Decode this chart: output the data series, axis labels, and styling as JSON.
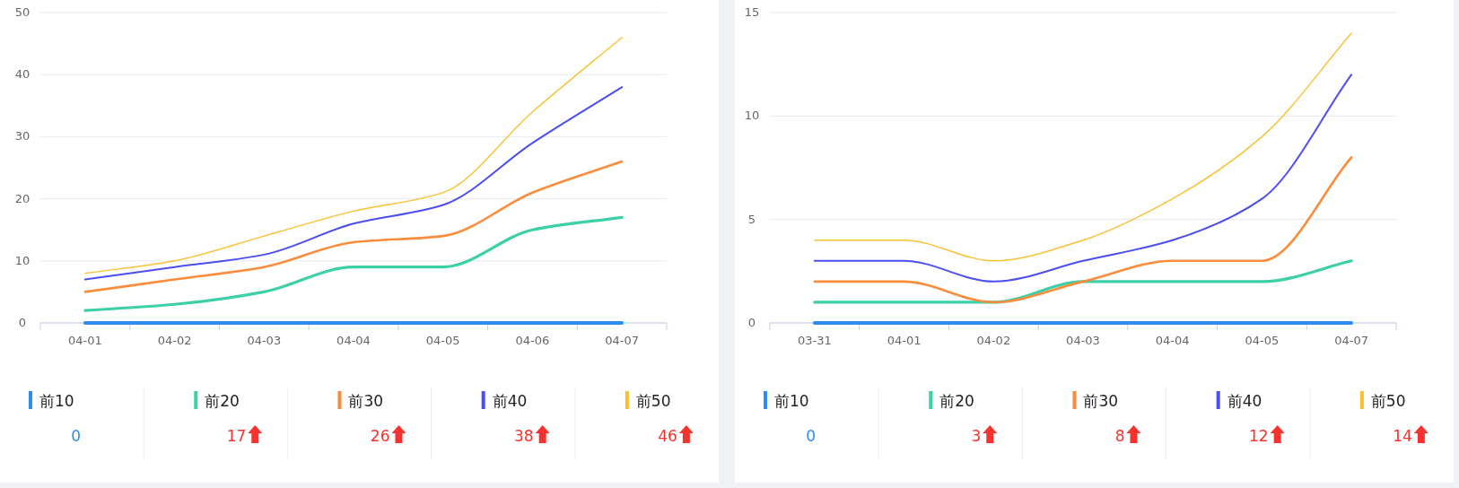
{
  "chart_data": [
    {
      "type": "line",
      "categories": [
        "04-01",
        "04-02",
        "04-03",
        "04-04",
        "04-05",
        "04-06",
        "04-07"
      ],
      "ylim": [
        0,
        50
      ],
      "yticks": [
        0,
        10,
        20,
        30,
        40,
        50
      ],
      "grid": "y",
      "legend": "bottom",
      "series": [
        {
          "name": "前10",
          "color": "#2d8cf0",
          "values": [
            0,
            0,
            0,
            0,
            0,
            0,
            0
          ]
        },
        {
          "name": "前20",
          "color": "#3ccfa8",
          "values": [
            2,
            3,
            5,
            9,
            9,
            15,
            17
          ]
        },
        {
          "name": "前30",
          "color": "#fb8c3c",
          "values": [
            5,
            7,
            9,
            13,
            14,
            21,
            26
          ]
        },
        {
          "name": "前40",
          "color": "#4b4ef0",
          "values": [
            7,
            9,
            11,
            16,
            19,
            29,
            38
          ]
        },
        {
          "name": "前50",
          "color": "#f9c032",
          "values": [
            8,
            10,
            14,
            18,
            21,
            34,
            46
          ]
        }
      ],
      "annotations": [
        "0",
        "17",
        "26",
        "38",
        "46"
      ]
    },
    {
      "type": "line",
      "categories": [
        "03-31",
        "04-01",
        "04-02",
        "04-03",
        "04-04",
        "04-05",
        "04-07"
      ],
      "ylim": [
        0,
        15
      ],
      "yticks": [
        0,
        5,
        10,
        15
      ],
      "grid": "y",
      "legend": "bottom",
      "series": [
        {
          "name": "前10",
          "color": "#2d8cf0",
          "values": [
            0,
            0,
            0,
            0,
            0,
            0,
            0
          ]
        },
        {
          "name": "前20",
          "color": "#3ccfa8",
          "values": [
            1,
            1,
            1,
            2,
            2,
            2,
            3
          ]
        },
        {
          "name": "前30",
          "color": "#fb8c3c",
          "values": [
            2,
            2,
            1,
            2,
            3,
            3,
            8
          ]
        },
        {
          "name": "前40",
          "color": "#4b4ef0",
          "values": [
            3,
            3,
            2,
            3,
            4,
            6,
            12
          ]
        },
        {
          "name": "前50",
          "color": "#f9c032",
          "values": [
            4,
            4,
            3,
            4,
            6,
            9,
            14
          ]
        }
      ],
      "annotations": [
        "0",
        "3",
        "8",
        "12",
        "14"
      ]
    }
  ]
}
